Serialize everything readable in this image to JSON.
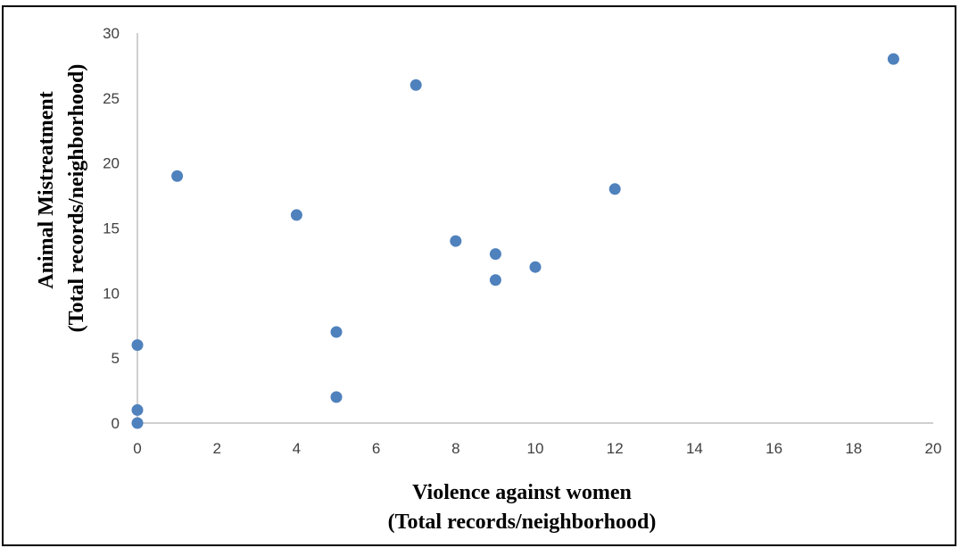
{
  "chart_data": {
    "type": "scatter",
    "title": "",
    "xlabel": [
      "Violence against women",
      "(Total records/neighborhood)"
    ],
    "ylabel": [
      "Animal Mistreatment",
      "(Total records/neighborhood)"
    ],
    "xlim": [
      0,
      20
    ],
    "ylim": [
      0,
      30
    ],
    "xticks": [
      0,
      2,
      4,
      6,
      8,
      10,
      12,
      14,
      16,
      18,
      20
    ],
    "yticks": [
      0,
      5,
      10,
      15,
      20,
      25,
      30
    ],
    "grid": false,
    "legend": "none",
    "marker_color": "#4F81BD",
    "axis_color": "#BFBFBF",
    "points": [
      {
        "x": 0,
        "y": 0
      },
      {
        "x": 0,
        "y": 1
      },
      {
        "x": 0,
        "y": 6
      },
      {
        "x": 1,
        "y": 19
      },
      {
        "x": 4,
        "y": 16
      },
      {
        "x": 5,
        "y": 7
      },
      {
        "x": 5,
        "y": 2
      },
      {
        "x": 7,
        "y": 26
      },
      {
        "x": 8,
        "y": 14
      },
      {
        "x": 9,
        "y": 13
      },
      {
        "x": 9,
        "y": 11
      },
      {
        "x": 10,
        "y": 12
      },
      {
        "x": 12,
        "y": 18
      },
      {
        "x": 19,
        "y": 28
      }
    ]
  }
}
